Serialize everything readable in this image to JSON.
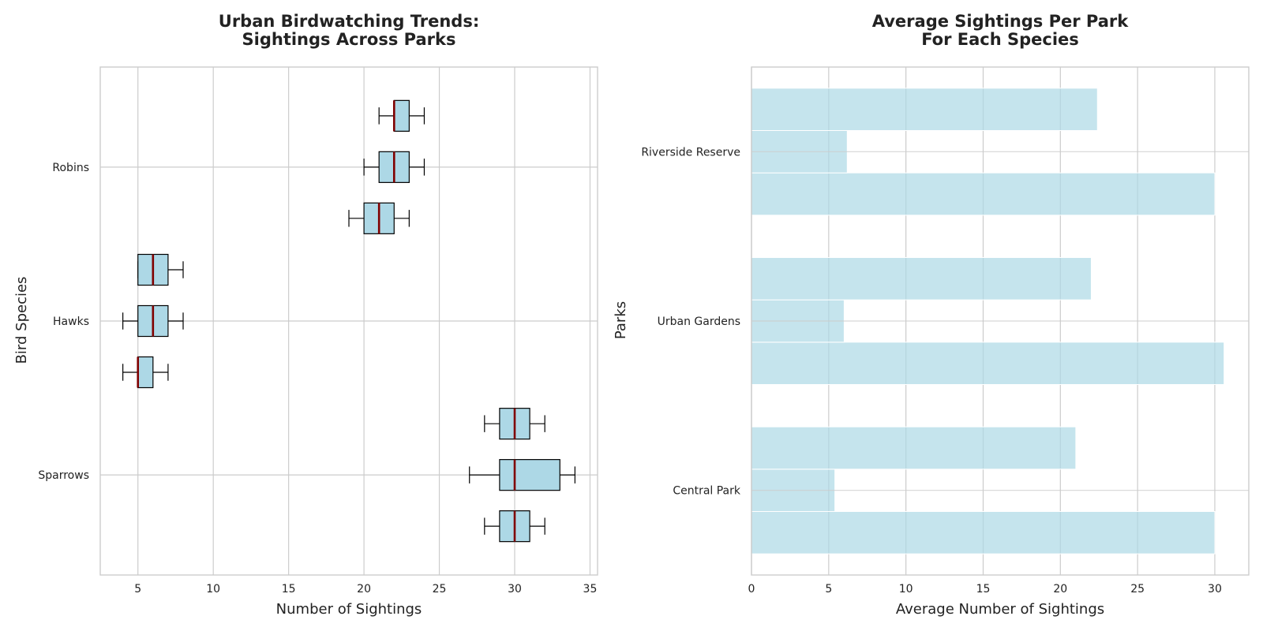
{
  "chart_data": [
    {
      "type": "box",
      "title_lines": [
        "Urban Birdwatching Trends:",
        "Sightings Across Parks"
      ],
      "xlabel": "Number of Sightings",
      "ylabel": "Bird Species",
      "xlim": [
        2.5,
        35.5
      ],
      "xticks": [
        5,
        10,
        15,
        20,
        25,
        30,
        35
      ],
      "categories": [
        "Sparrows",
        "Hawks",
        "Robins"
      ],
      "grid": true,
      "colors": {
        "box_fill": "#add8e6",
        "median": "#800000",
        "edge": "#000000"
      },
      "boxes": [
        {
          "category": "Sparrows",
          "offset": -1,
          "whisker_low": 28,
          "q1": 29,
          "median": 30,
          "q3": 31,
          "whisker_high": 32
        },
        {
          "category": "Sparrows",
          "offset": 0,
          "whisker_low": 27,
          "q1": 29,
          "median": 30,
          "q3": 33,
          "whisker_high": 34
        },
        {
          "category": "Sparrows",
          "offset": 1,
          "whisker_low": 28,
          "q1": 29,
          "median": 30,
          "q3": 31,
          "whisker_high": 32
        },
        {
          "category": "Hawks",
          "offset": -1,
          "whisker_low": 4,
          "q1": 5,
          "median": 5,
          "q3": 6,
          "whisker_high": 7
        },
        {
          "category": "Hawks",
          "offset": 0,
          "whisker_low": 4,
          "q1": 5,
          "median": 6,
          "q3": 7,
          "whisker_high": 8
        },
        {
          "category": "Hawks",
          "offset": 1,
          "whisker_low": 5,
          "q1": 5,
          "median": 6,
          "q3": 7,
          "whisker_high": 8
        },
        {
          "category": "Robins",
          "offset": -1,
          "whisker_low": 19,
          "q1": 20,
          "median": 21,
          "q3": 22,
          "whisker_high": 23
        },
        {
          "category": "Robins",
          "offset": 0,
          "whisker_low": 20,
          "q1": 21,
          "median": 22,
          "q3": 23,
          "whisker_high": 24
        },
        {
          "category": "Robins",
          "offset": 1,
          "whisker_low": 21,
          "q1": 22,
          "median": 22,
          "q3": 23,
          "whisker_high": 24
        }
      ]
    },
    {
      "type": "bar",
      "orientation": "horizontal",
      "title_lines": [
        "Average Sightings Per Park",
        "For Each Species"
      ],
      "xlabel": "Average Number of Sightings",
      "ylabel": "Parks",
      "xlim": [
        0,
        32.2
      ],
      "xticks": [
        0,
        5,
        10,
        15,
        20,
        25,
        30
      ],
      "categories": [
        "Central Park",
        "Urban Gardens",
        "Riverside Reserve"
      ],
      "grid": true,
      "colors": {
        "bar": "#add8e6"
      },
      "series": [
        {
          "values": [
            30.0,
            30.6,
            30.0
          ]
        },
        {
          "values": [
            5.4,
            6.0,
            6.2
          ]
        },
        {
          "values": [
            21.0,
            22.0,
            22.4
          ]
        }
      ]
    }
  ]
}
